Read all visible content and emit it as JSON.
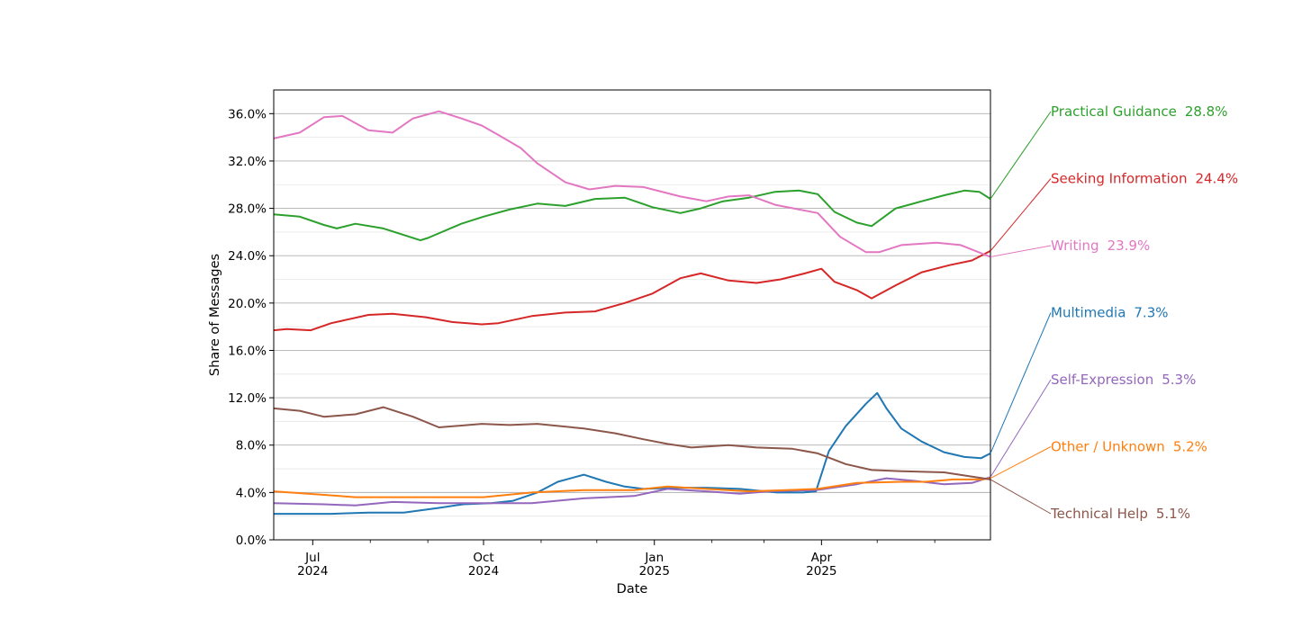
{
  "chart_data": {
    "type": "line",
    "title": "",
    "xlabel": "Date",
    "ylabel": "Share of Messages",
    "ylim": [
      0,
      0.38
    ],
    "y_ticks": [
      {
        "value": 0.0,
        "label": "0.0%"
      },
      {
        "value": 0.04,
        "label": "4.0%"
      },
      {
        "value": 0.08,
        "label": "8.0%"
      },
      {
        "value": 0.12,
        "label": "12.0%"
      },
      {
        "value": 0.16,
        "label": "16.0%"
      },
      {
        "value": 0.2,
        "label": "20.0%"
      },
      {
        "value": 0.24,
        "label": "24.0%"
      },
      {
        "value": 0.28,
        "label": "28.0%"
      },
      {
        "value": 0.32,
        "label": "32.0%"
      },
      {
        "value": 0.36,
        "label": "36.0%"
      }
    ],
    "xlim": [
      "2024-06-10",
      "2025-07-01"
    ],
    "x_major_ticks": [
      {
        "date": "2024-07-01",
        "month": "Jul",
        "year": "2024"
      },
      {
        "date": "2024-10-01",
        "month": "Oct",
        "year": "2024"
      },
      {
        "date": "2025-01-01",
        "month": "Jan",
        "year": "2025"
      },
      {
        "date": "2025-04-01",
        "month": "Apr",
        "year": "2025"
      }
    ],
    "x_minor_ticks": [
      "2024-08-01",
      "2024-09-01",
      "2024-11-01",
      "2024-12-01",
      "2025-02-01",
      "2025-03-01",
      "2025-05-01",
      "2025-06-01"
    ],
    "grid": "horizontal",
    "legend": "right, labels at line ends",
    "series": [
      {
        "name": "Practical Guidance",
        "end_label": "28.8%",
        "color": "#2ca02c",
        "points": [
          [
            "2024-06-10",
            0.275
          ],
          [
            "2024-06-24",
            0.273
          ],
          [
            "2024-07-07",
            0.266
          ],
          [
            "2024-07-14",
            0.263
          ],
          [
            "2024-07-24",
            0.267
          ],
          [
            "2024-08-08",
            0.263
          ],
          [
            "2024-08-28",
            0.253
          ],
          [
            "2024-09-01",
            0.255
          ],
          [
            "2024-09-19",
            0.267
          ],
          [
            "2024-10-01",
            0.273
          ],
          [
            "2024-10-15",
            0.279
          ],
          [
            "2024-10-30",
            0.284
          ],
          [
            "2024-11-14",
            0.282
          ],
          [
            "2024-11-30",
            0.288
          ],
          [
            "2024-12-16",
            0.289
          ],
          [
            "2024-12-31",
            0.281
          ],
          [
            "2025-01-15",
            0.276
          ],
          [
            "2025-01-26",
            0.28
          ],
          [
            "2025-02-07",
            0.286
          ],
          [
            "2025-02-21",
            0.289
          ],
          [
            "2025-03-07",
            0.294
          ],
          [
            "2025-03-20",
            0.295
          ],
          [
            "2025-03-30",
            0.292
          ],
          [
            "2025-04-08",
            0.277
          ],
          [
            "2025-04-20",
            0.268
          ],
          [
            "2025-04-28",
            0.265
          ],
          [
            "2025-05-11",
            0.28
          ],
          [
            "2025-05-25",
            0.286
          ],
          [
            "2025-06-06",
            0.291
          ],
          [
            "2025-06-17",
            0.295
          ],
          [
            "2025-06-25",
            0.294
          ],
          [
            "2025-07-01",
            0.288
          ]
        ]
      },
      {
        "name": "Seeking Information",
        "end_label": "24.4%",
        "color": "#d62728",
        "points": [
          [
            "2024-06-10",
            0.177
          ],
          [
            "2024-06-17",
            0.178
          ],
          [
            "2024-06-30",
            0.177
          ],
          [
            "2024-07-11",
            0.183
          ],
          [
            "2024-07-31",
            0.19
          ],
          [
            "2024-08-13",
            0.191
          ],
          [
            "2024-08-31",
            0.188
          ],
          [
            "2024-09-14",
            0.184
          ],
          [
            "2024-09-30",
            0.182
          ],
          [
            "2024-10-09",
            0.183
          ],
          [
            "2024-10-27",
            0.189
          ],
          [
            "2024-11-14",
            0.192
          ],
          [
            "2024-11-30",
            0.193
          ],
          [
            "2024-12-16",
            0.2
          ],
          [
            "2024-12-31",
            0.208
          ],
          [
            "2025-01-15",
            0.221
          ],
          [
            "2025-01-26",
            0.225
          ],
          [
            "2025-02-10",
            0.219
          ],
          [
            "2025-02-25",
            0.217
          ],
          [
            "2025-03-10",
            0.22
          ],
          [
            "2025-03-23",
            0.225
          ],
          [
            "2025-04-01",
            0.229
          ],
          [
            "2025-04-08",
            0.218
          ],
          [
            "2025-04-20",
            0.211
          ],
          [
            "2025-04-28",
            0.204
          ],
          [
            "2025-05-11",
            0.215
          ],
          [
            "2025-05-25",
            0.226
          ],
          [
            "2025-06-09",
            0.232
          ],
          [
            "2025-06-21",
            0.236
          ],
          [
            "2025-07-01",
            0.244
          ]
        ]
      },
      {
        "name": "Writing",
        "end_label": "23.9%",
        "color": "#e377c2",
        "points": [
          [
            "2024-06-10",
            0.339
          ],
          [
            "2024-06-24",
            0.344
          ],
          [
            "2024-07-07",
            0.357
          ],
          [
            "2024-07-17",
            0.358
          ],
          [
            "2024-07-31",
            0.346
          ],
          [
            "2024-08-13",
            0.344
          ],
          [
            "2024-08-24",
            0.356
          ],
          [
            "2024-09-07",
            0.362
          ],
          [
            "2024-09-19",
            0.356
          ],
          [
            "2024-09-30",
            0.35
          ],
          [
            "2024-10-09",
            0.342
          ],
          [
            "2024-10-21",
            0.331
          ],
          [
            "2024-10-30",
            0.318
          ],
          [
            "2024-11-14",
            0.302
          ],
          [
            "2024-11-27",
            0.296
          ],
          [
            "2024-12-11",
            0.299
          ],
          [
            "2024-12-26",
            0.298
          ],
          [
            "2025-01-15",
            0.29
          ],
          [
            "2025-01-29",
            0.286
          ],
          [
            "2025-02-10",
            0.29
          ],
          [
            "2025-02-21",
            0.291
          ],
          [
            "2025-03-07",
            0.283
          ],
          [
            "2025-03-20",
            0.279
          ],
          [
            "2025-03-30",
            0.276
          ],
          [
            "2025-04-11",
            0.256
          ],
          [
            "2025-04-25",
            0.243
          ],
          [
            "2025-05-02",
            0.243
          ],
          [
            "2025-05-14",
            0.249
          ],
          [
            "2025-06-02",
            0.251
          ],
          [
            "2025-06-15",
            0.249
          ],
          [
            "2025-07-01",
            0.239
          ]
        ]
      },
      {
        "name": "Multimedia",
        "end_label": "7.3%",
        "color": "#1f77b4",
        "points": [
          [
            "2024-06-10",
            0.022
          ],
          [
            "2024-06-24",
            0.022
          ],
          [
            "2024-07-11",
            0.022
          ],
          [
            "2024-07-31",
            0.023
          ],
          [
            "2024-08-19",
            0.023
          ],
          [
            "2024-09-07",
            0.027
          ],
          [
            "2024-09-20",
            0.03
          ],
          [
            "2024-10-05",
            0.031
          ],
          [
            "2024-10-17",
            0.033
          ],
          [
            "2024-10-30",
            0.04
          ],
          [
            "2024-11-10",
            0.049
          ],
          [
            "2024-11-24",
            0.055
          ],
          [
            "2024-12-06",
            0.049
          ],
          [
            "2024-12-16",
            0.045
          ],
          [
            "2024-12-26",
            0.043
          ],
          [
            "2025-01-15",
            0.044
          ],
          [
            "2025-01-29",
            0.044
          ],
          [
            "2025-02-16",
            0.043
          ],
          [
            "2025-03-08",
            0.04
          ],
          [
            "2025-03-22",
            0.04
          ],
          [
            "2025-03-29",
            0.041
          ],
          [
            "2025-04-05",
            0.075
          ],
          [
            "2025-04-14",
            0.096
          ],
          [
            "2025-04-25",
            0.115
          ],
          [
            "2025-05-01",
            0.124
          ],
          [
            "2025-05-06",
            0.111
          ],
          [
            "2025-05-14",
            0.094
          ],
          [
            "2025-05-25",
            0.083
          ],
          [
            "2025-06-06",
            0.074
          ],
          [
            "2025-06-17",
            0.07
          ],
          [
            "2025-06-26",
            0.069
          ],
          [
            "2025-07-01",
            0.073
          ]
        ]
      },
      {
        "name": "Self-Expression",
        "end_label": "5.3%",
        "color": "#9467bd",
        "points": [
          [
            "2024-06-10",
            0.031
          ],
          [
            "2024-07-07",
            0.03
          ],
          [
            "2024-07-24",
            0.029
          ],
          [
            "2024-08-13",
            0.032
          ],
          [
            "2024-09-07",
            0.031
          ],
          [
            "2024-10-01",
            0.031
          ],
          [
            "2024-10-27",
            0.031
          ],
          [
            "2024-11-24",
            0.035
          ],
          [
            "2024-12-21",
            0.037
          ],
          [
            "2025-01-08",
            0.043
          ],
          [
            "2025-01-29",
            0.041
          ],
          [
            "2025-02-16",
            0.039
          ],
          [
            "2025-03-04",
            0.041
          ],
          [
            "2025-03-29",
            0.042
          ],
          [
            "2025-04-20",
            0.047
          ],
          [
            "2025-05-06",
            0.052
          ],
          [
            "2025-05-20",
            0.05
          ],
          [
            "2025-06-06",
            0.047
          ],
          [
            "2025-06-21",
            0.048
          ],
          [
            "2025-07-01",
            0.053
          ]
        ]
      },
      {
        "name": "Other / Unknown",
        "end_label": "5.2%",
        "color": "#ff7f0e",
        "points": [
          [
            "2024-06-10",
            0.041
          ],
          [
            "2024-07-07",
            0.038
          ],
          [
            "2024-07-24",
            0.036
          ],
          [
            "2024-08-19",
            0.036
          ],
          [
            "2024-09-07",
            0.036
          ],
          [
            "2024-10-01",
            0.036
          ],
          [
            "2024-10-27",
            0.04
          ],
          [
            "2024-11-24",
            0.042
          ],
          [
            "2024-12-21",
            0.042
          ],
          [
            "2025-01-08",
            0.045
          ],
          [
            "2025-01-29",
            0.043
          ],
          [
            "2025-02-21",
            0.041
          ],
          [
            "2025-03-13",
            0.042
          ],
          [
            "2025-03-30",
            0.043
          ],
          [
            "2025-04-20",
            0.048
          ],
          [
            "2025-05-14",
            0.049
          ],
          [
            "2025-05-27",
            0.049
          ],
          [
            "2025-06-11",
            0.051
          ],
          [
            "2025-06-26",
            0.051
          ],
          [
            "2025-07-01",
            0.052
          ]
        ]
      },
      {
        "name": "Technical Help",
        "end_label": "5.1%",
        "color": "#8c564b",
        "points": [
          [
            "2024-06-10",
            0.111
          ],
          [
            "2024-06-24",
            0.109
          ],
          [
            "2024-07-07",
            0.104
          ],
          [
            "2024-07-24",
            0.106
          ],
          [
            "2024-08-08",
            0.112
          ],
          [
            "2024-08-24",
            0.104
          ],
          [
            "2024-09-07",
            0.095
          ],
          [
            "2024-09-30",
            0.098
          ],
          [
            "2024-10-15",
            0.097
          ],
          [
            "2024-10-30",
            0.098
          ],
          [
            "2024-11-24",
            0.094
          ],
          [
            "2024-12-11",
            0.09
          ],
          [
            "2024-12-26",
            0.085
          ],
          [
            "2025-01-08",
            0.081
          ],
          [
            "2025-01-21",
            0.078
          ],
          [
            "2025-02-10",
            0.08
          ],
          [
            "2025-02-25",
            0.078
          ],
          [
            "2025-03-16",
            0.077
          ],
          [
            "2025-03-30",
            0.073
          ],
          [
            "2025-04-14",
            0.064
          ],
          [
            "2025-04-28",
            0.059
          ],
          [
            "2025-05-14",
            0.058
          ],
          [
            "2025-06-06",
            0.057
          ],
          [
            "2025-07-01",
            0.051
          ]
        ]
      }
    ]
  }
}
